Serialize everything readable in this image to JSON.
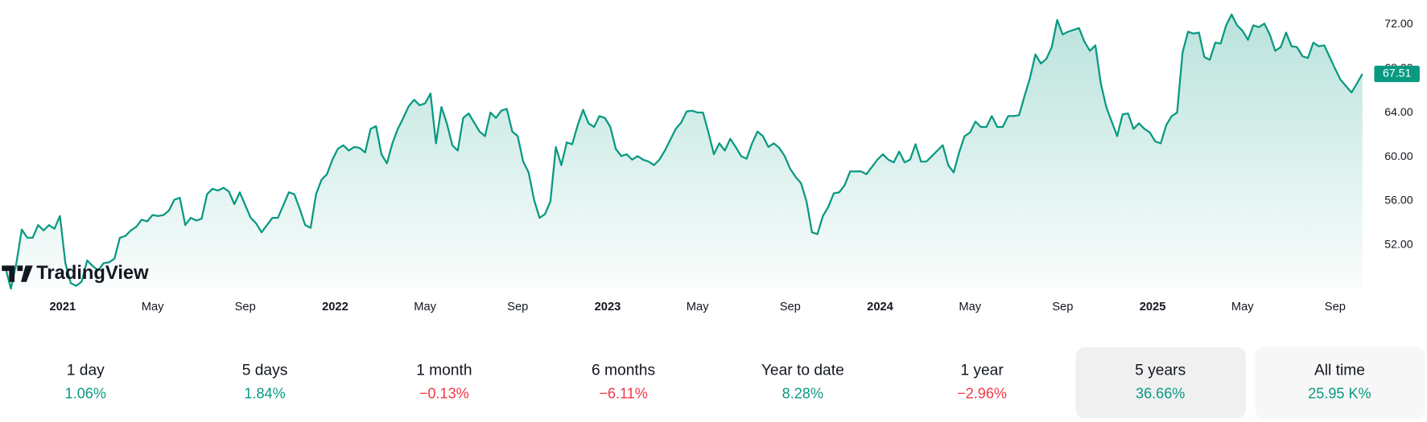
{
  "chart_data": {
    "type": "area",
    "color": "#089981",
    "watermark": "TradingView",
    "x": [
      2020.79,
      2020.81,
      2020.83,
      2020.85,
      2020.87,
      2020.89,
      2020.91,
      2020.93,
      2020.95,
      2020.97,
      2020.99,
      2021.01,
      2021.03,
      2021.05,
      2021.07,
      2021.09,
      2021.11,
      2021.13,
      2021.15,
      2021.17,
      2021.19,
      2021.21,
      2021.23,
      2021.25,
      2021.27,
      2021.29,
      2021.31,
      2021.33,
      2021.35,
      2021.37,
      2021.39,
      2021.41,
      2021.43,
      2021.45,
      2021.47,
      2021.49,
      2021.51,
      2021.53,
      2021.55,
      2021.57,
      2021.59,
      2021.61,
      2021.63,
      2021.65,
      2021.67,
      2021.69,
      2021.71,
      2021.73,
      2021.75,
      2021.77,
      2021.79,
      2021.81,
      2021.83,
      2021.85,
      2021.87,
      2021.89,
      2021.91,
      2021.93,
      2021.95,
      2021.97,
      2021.99,
      2022.01,
      2022.03,
      2022.05,
      2022.07,
      2022.09,
      2022.11,
      2022.13,
      2022.15,
      2022.17,
      2022.19,
      2022.21,
      2022.23,
      2022.25,
      2022.27,
      2022.29,
      2022.31,
      2022.33,
      2022.35,
      2022.37,
      2022.39,
      2022.41,
      2022.43,
      2022.45,
      2022.47,
      2022.49,
      2022.51,
      2022.53,
      2022.55,
      2022.57,
      2022.59,
      2022.61,
      2022.63,
      2022.65,
      2022.67,
      2022.69,
      2022.71,
      2022.73,
      2022.75,
      2022.77,
      2022.79,
      2022.81,
      2022.83,
      2022.85,
      2022.87,
      2022.89,
      2022.91,
      2022.93,
      2022.95,
      2022.97,
      2022.99,
      2023.01,
      2023.03,
      2023.05,
      2023.07,
      2023.09,
      2023.11,
      2023.13,
      2023.15,
      2023.17,
      2023.19,
      2023.21,
      2023.23,
      2023.25,
      2023.27,
      2023.29,
      2023.31,
      2023.33,
      2023.35,
      2023.37,
      2023.39,
      2023.41,
      2023.43,
      2023.45,
      2023.47,
      2023.49,
      2023.51,
      2023.53,
      2023.55,
      2023.57,
      2023.59,
      2023.61,
      2023.63,
      2023.65,
      2023.67,
      2023.69,
      2023.71,
      2023.73,
      2023.75,
      2023.77,
      2023.79,
      2023.81,
      2023.83,
      2023.85,
      2023.87,
      2023.89,
      2023.91,
      2023.93,
      2023.95,
      2023.97,
      2023.99,
      2024.01,
      2024.03,
      2024.05,
      2024.07,
      2024.09,
      2024.11,
      2024.13,
      2024.15,
      2024.17,
      2024.19,
      2024.21,
      2024.23,
      2024.25,
      2024.27,
      2024.29,
      2024.31,
      2024.33,
      2024.35,
      2024.37,
      2024.39,
      2024.41,
      2024.43,
      2024.45,
      2024.47,
      2024.49,
      2024.51,
      2024.53,
      2024.55,
      2024.57,
      2024.59,
      2024.61,
      2024.63,
      2024.65,
      2024.67,
      2024.69,
      2024.71,
      2024.73,
      2024.75,
      2024.77,
      2024.79,
      2024.81,
      2024.83,
      2024.85,
      2024.87,
      2024.89,
      2024.91,
      2024.93,
      2024.95,
      2024.97,
      2024.99,
      2025.01,
      2025.03,
      2025.05,
      2025.07,
      2025.09,
      2025.11,
      2025.13,
      2025.15,
      2025.17,
      2025.19,
      2025.21,
      2025.23,
      2025.25,
      2025.27,
      2025.29,
      2025.31,
      2025.33,
      2025.35,
      2025.37,
      2025.39,
      2025.41,
      2025.43,
      2025.45,
      2025.47,
      2025.49,
      2025.51,
      2025.53,
      2025.55,
      2025.57,
      2025.59,
      2025.61,
      2025.63,
      2025.65,
      2025.67,
      2025.69,
      2025.71,
      2025.73,
      2025.75,
      2025.77
    ],
    "values": [
      49.94,
      48.05,
      50.35,
      53.4,
      52.66,
      52.66,
      53.81,
      53.32,
      53.81,
      53.48,
      54.63,
      50.35,
      48.54,
      48.3,
      48.7,
      50.6,
      50.1,
      49.7,
      50.35,
      50.43,
      50.76,
      52.66,
      52.82,
      53.32,
      53.65,
      54.3,
      54.14,
      54.72,
      54.63,
      54.72,
      55.13,
      56.11,
      56.28,
      53.81,
      54.47,
      54.22,
      54.39,
      56.61,
      57.1,
      56.94,
      57.19,
      56.86,
      55.7,
      56.78,
      55.62,
      54.47,
      53.97,
      53.15,
      53.81,
      54.47,
      54.47,
      55.62,
      56.78,
      56.61,
      55.29,
      53.81,
      53.56,
      56.61,
      57.92,
      58.42,
      59.74,
      60.72,
      61.05,
      60.56,
      60.89,
      60.8,
      60.39,
      62.53,
      62.78,
      60.23,
      59.41,
      61.22,
      62.53,
      63.52,
      64.59,
      65.17,
      64.67,
      64.84,
      65.74,
      61.22,
      64.51,
      63.03,
      61.05,
      60.56,
      63.52,
      63.93,
      63.11,
      62.29,
      61.87,
      64.01,
      63.52,
      64.18,
      64.34,
      62.29,
      61.87,
      59.57,
      58.58,
      56.11,
      54.47,
      54.8,
      55.95,
      60.89,
      59.24,
      61.3,
      61.14,
      62.86,
      64.26,
      63.03,
      62.7,
      63.69,
      63.52,
      62.7,
      60.72,
      60.06,
      60.23,
      59.74,
      60.06,
      59.74,
      59.57,
      59.24,
      59.74,
      60.56,
      61.54,
      62.53,
      63.11,
      64.1,
      64.18,
      64.01,
      64.01,
      62.2,
      60.23,
      61.22,
      60.56,
      61.63,
      60.89,
      60.06,
      59.82,
      61.22,
      62.29,
      61.87,
      60.89,
      61.22,
      60.8,
      60.06,
      58.91,
      58.17,
      57.6,
      55.95,
      53.15,
      52.99,
      54.63,
      55.46,
      56.69,
      56.78,
      57.43,
      58.67,
      58.67,
      58.67,
      58.42,
      59.08,
      59.74,
      60.23,
      59.74,
      59.49,
      60.47,
      59.49,
      59.74,
      61.14,
      59.57,
      59.57,
      60.06,
      60.56,
      61.05,
      59.24,
      58.58,
      60.39,
      61.87,
      62.2,
      63.19,
      62.7,
      62.7,
      63.69,
      62.7,
      62.7,
      63.69,
      63.69,
      63.77,
      65.5,
      67.14,
      69.28,
      68.46,
      68.87,
      69.94,
      72.41,
      71.09,
      71.34,
      71.5,
      71.67,
      70.43,
      69.61,
      70.1,
      66.65,
      64.51,
      63.19,
      61.87,
      63.85,
      63.93,
      62.53,
      63.03,
      62.53,
      62.2,
      61.38,
      61.22,
      62.86,
      63.69,
      64.01,
      69.45,
      71.34,
      71.17,
      71.26,
      69.04,
      68.79,
      70.35,
      70.27,
      71.92,
      72.9,
      71.92,
      71.42,
      70.6,
      71.92,
      71.75,
      72.08,
      71.09,
      69.61,
      69.94,
      71.26,
      70.02,
      69.94,
      69.12,
      68.95,
      70.35,
      70.02,
      70.1,
      69.04,
      67.97,
      66.98,
      66.4,
      65.83,
      66.65,
      67.51
    ],
    "xlim": [
      2020.77,
      2025.79
    ],
    "ylim": [
      48,
      74.2
    ],
    "xticks": [
      2021,
      {
        "value": 2021.33,
        "label": "May"
      },
      {
        "value": 2021.67,
        "label": "Sep"
      },
      2022,
      {
        "value": 2022.33,
        "label": "May"
      },
      {
        "value": 2022.67,
        "label": "Sep"
      },
      2023,
      {
        "value": 2023.33,
        "label": "May"
      },
      {
        "value": 2023.67,
        "label": "Sep"
      },
      2024,
      {
        "value": 2024.33,
        "label": "May"
      },
      {
        "value": 2024.67,
        "label": "Sep"
      },
      2025,
      {
        "value": 2025.33,
        "label": "May"
      },
      {
        "value": 2025.67,
        "label": "Sep"
      }
    ],
    "yticks": [
      {
        "value": 52,
        "label": "52.00"
      },
      {
        "value": 56,
        "label": "56.00"
      },
      {
        "value": 60,
        "label": "60.00"
      },
      {
        "value": 64,
        "label": "64.00"
      },
      {
        "value": 68,
        "label": "68.00"
      },
      {
        "value": 72,
        "label": "72.00"
      }
    ]
  },
  "periods": [
    {
      "label": "1 day",
      "change": "1.06%"
    },
    {
      "label": "5 days",
      "change": "1.84%"
    },
    {
      "label": "1 month",
      "change": "−0.13%"
    },
    {
      "label": "6 months",
      "change": "−6.11%"
    },
    {
      "label": "Year to date",
      "change": "8.28%"
    },
    {
      "label": "1 year",
      "change": "−2.96%"
    },
    {
      "label": "5 years",
      "change": "36.66%"
    },
    {
      "label": "All time",
      "change": "25.95 K%"
    }
  ]
}
